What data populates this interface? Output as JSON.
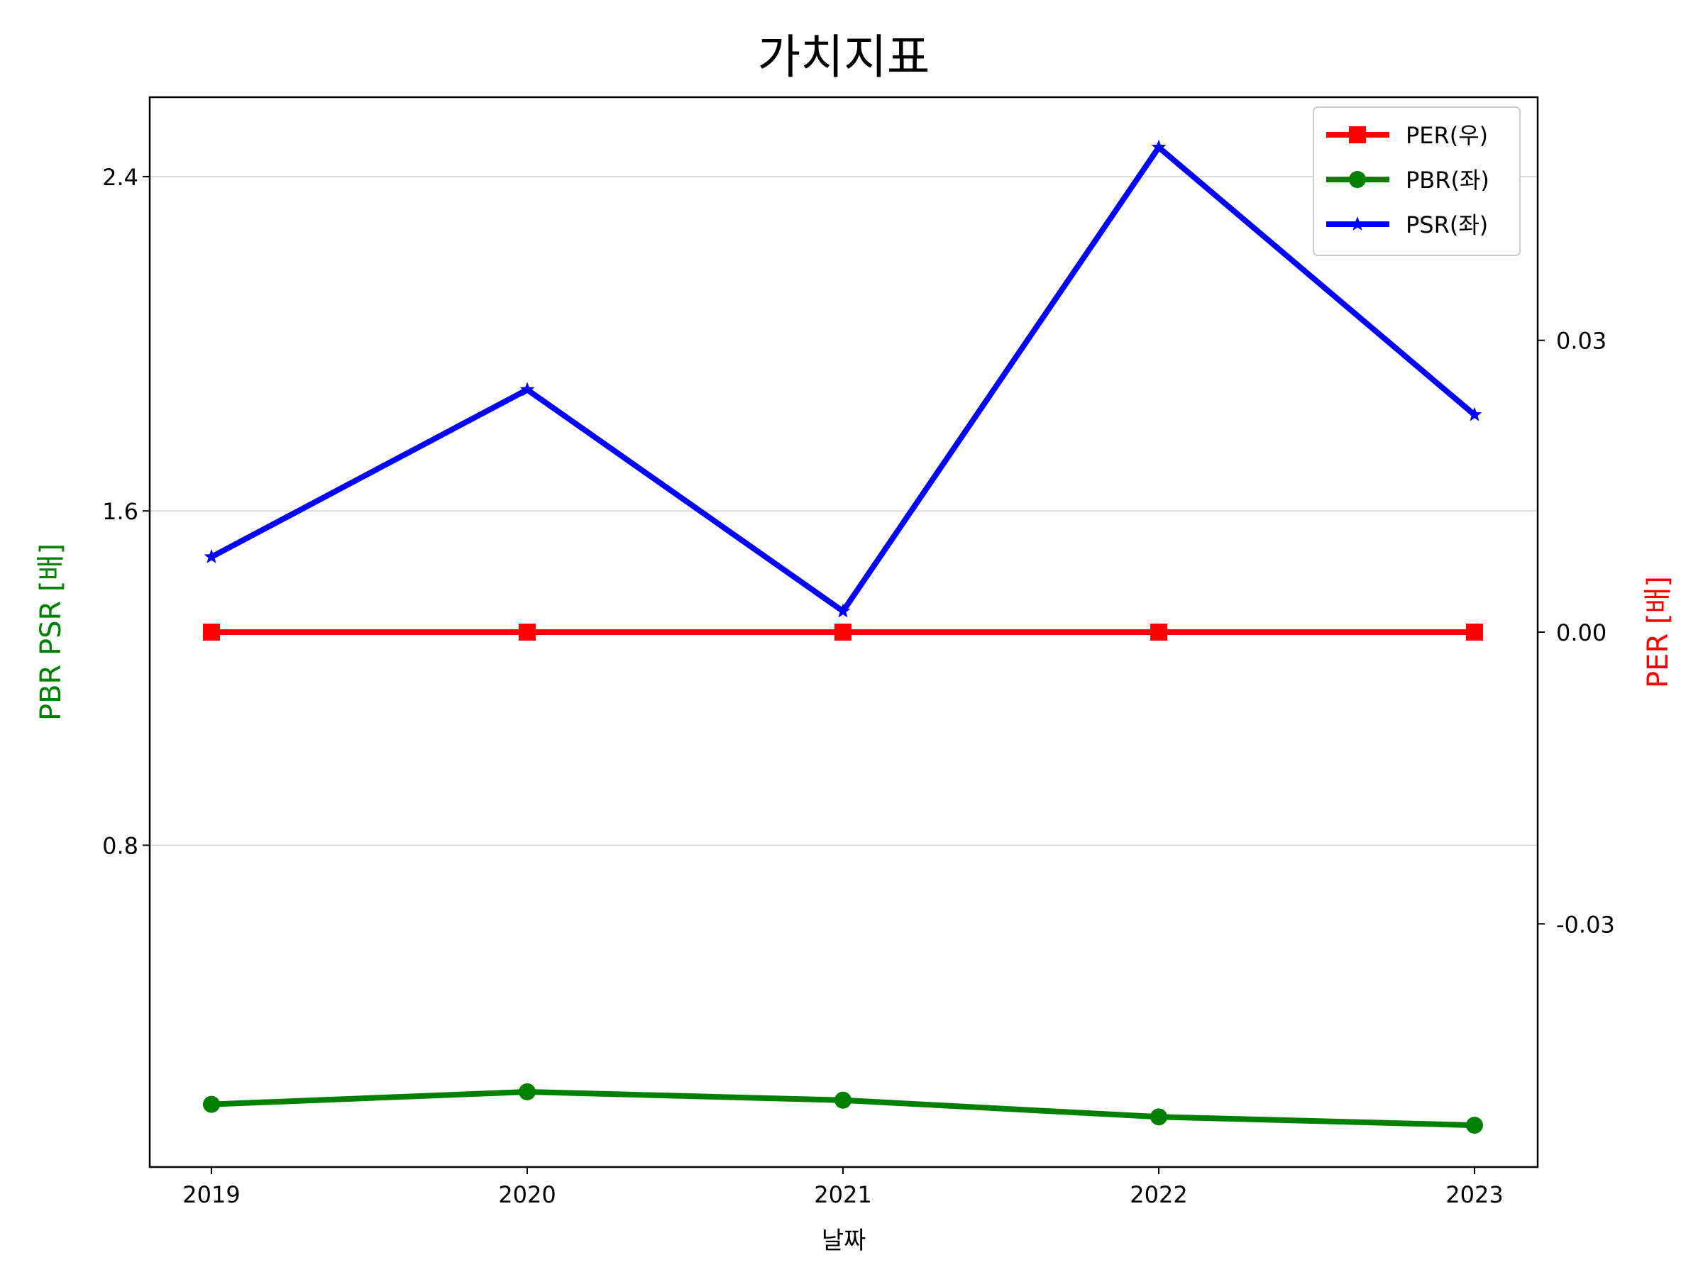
{
  "chart_data": {
    "type": "line",
    "title": "가치지표",
    "xlabel": "날짜",
    "ylabel_left": "PBR PSR [배]",
    "ylabel_right": "PER [배]",
    "x": [
      "2019",
      "2020",
      "2021",
      "2022",
      "2023"
    ],
    "y_left_ticks": [
      "0.8",
      "1.6",
      "2.4"
    ],
    "y_right_ticks": [
      "-0.03",
      "0.00",
      "0.03"
    ],
    "ylim_left": [
      0.03,
      2.59
    ],
    "ylim_right": [
      -0.055,
      0.055
    ],
    "grid": "horizontal (left axis)",
    "legend_position": "top-right",
    "series": [
      {
        "name": "PER(우)",
        "axis": "right",
        "color": "#ff0000",
        "marker": "square",
        "values": [
          0.0,
          0.0,
          0.0,
          0.0,
          0.0
        ]
      },
      {
        "name": "PBR(좌)",
        "axis": "left",
        "color": "#008000",
        "marker": "circle",
        "values": [
          0.18,
          0.21,
          0.19,
          0.15,
          0.13
        ]
      },
      {
        "name": "PSR(좌)",
        "axis": "left",
        "color": "#0000ff",
        "marker": "star",
        "values": [
          1.49,
          1.89,
          1.36,
          2.47,
          1.83
        ]
      }
    ]
  }
}
